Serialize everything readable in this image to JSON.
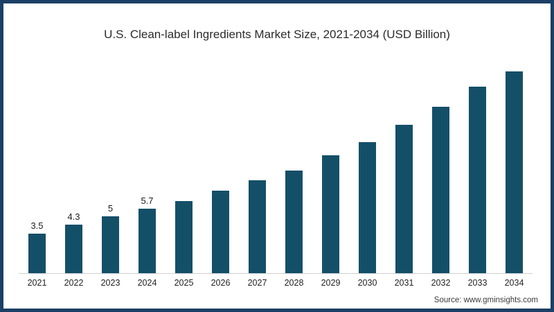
{
  "frame": {
    "border_color": "#1c3f66",
    "background": "#ffffff"
  },
  "title": "U.S. Clean-label Ingredients Market Size, 2021-2034 (USD Billion)",
  "source_text": "Source: www.gminsights.com",
  "chart_data": {
    "type": "bar",
    "title": "U.S. Clean-label Ingredients Market Size, 2021-2034 (USD Billion)",
    "xlabel": "",
    "ylabel": "",
    "categories": [
      "2021",
      "2022",
      "2023",
      "2024",
      "2025",
      "2026",
      "2027",
      "2028",
      "2029",
      "2030",
      "2031",
      "2032",
      "2033",
      "2034"
    ],
    "values": [
      3.5,
      4.3,
      5.0,
      5.7,
      6.4,
      7.3,
      8.2,
      9.1,
      10.4,
      11.6,
      13.1,
      14.7,
      16.5,
      18.6
    ],
    "value_labels": [
      "3.5",
      "4.3",
      "5",
      "5.7",
      "",
      "",
      "",
      "",
      "",
      "",
      "",
      "",
      "",
      ""
    ],
    "bar_color": "#144f68",
    "axis_line_color": "#d0d0d0",
    "ylim": [
      0,
      20
    ],
    "grid": false,
    "legend": false
  }
}
